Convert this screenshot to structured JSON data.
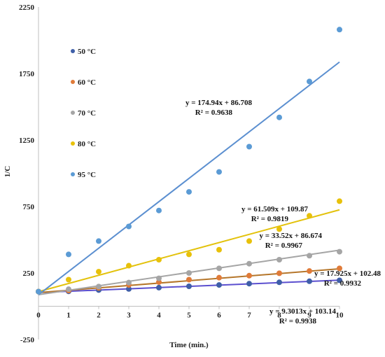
{
  "chart_data": {
    "type": "scatter",
    "xlabel": "Time (min.)",
    "ylabel": "1/C",
    "xlim": [
      0,
      10
    ],
    "ylim": [
      -250,
      2250
    ],
    "x_ticks": [
      0,
      1,
      2,
      3,
      4,
      5,
      6,
      7,
      8,
      9,
      10
    ],
    "y_ticks": [
      -250,
      250,
      750,
      1250,
      1750,
      2250
    ],
    "grid": false,
    "legend_position": "left",
    "x": [
      0,
      1,
      2,
      3,
      4,
      5,
      6,
      7,
      8,
      9,
      10
    ],
    "series": [
      {
        "name": "50 °C",
        "color": "#3f5fa8",
        "line_color": "#5b4fcf",
        "values": [
          110,
          112,
          122,
          130,
          140,
          150,
          160,
          170,
          180,
          188,
          195
        ],
        "slope": 9.3013,
        "intercept": 103.14,
        "equation": "y = 9.3013x + 103.14",
        "r2": "R² = 0.9938"
      },
      {
        "name": "60 °C",
        "color": "#e07b39",
        "line_color": "#b5762a",
        "values": [
          110,
          118,
          138,
          160,
          182,
          200,
          215,
          230,
          248,
          265,
          285
        ],
        "slope": 17.925,
        "intercept": 102.48,
        "equation": "y = 17.925x + 102.48",
        "r2": "R² = 0.9932"
      },
      {
        "name": "70 °C",
        "color": "#a5a5a5",
        "line_color": "#a5a5a5",
        "values": [
          110,
          128,
          148,
          178,
          210,
          250,
          285,
          320,
          350,
          380,
          410
        ],
        "slope": 33.52,
        "intercept": 86.674,
        "equation": "y = 33.52x + 86.674",
        "r2": "R² = 0.9967"
      },
      {
        "name": "80 °C",
        "color": "#e8c10a",
        "line_color": "#e3c20c",
        "values": [
          110,
          200,
          260,
          305,
          350,
          390,
          425,
          490,
          580,
          680,
          790
        ],
        "slope": 61.509,
        "intercept": 109.87,
        "equation": "y = 61.509x + 109.87",
        "r2": "R² = 0.9819"
      },
      {
        "name": "95 °C",
        "color": "#5b9bd5",
        "line_color": "#5b8fd0",
        "values": [
          110,
          390,
          490,
          600,
          720,
          860,
          1010,
          1200,
          1420,
          1690,
          2080
        ],
        "slope": 174.94,
        "intercept": 86.708,
        "equation": "y = 174.94x + 86.708",
        "r2": "R² = 0.9638"
      }
    ]
  }
}
